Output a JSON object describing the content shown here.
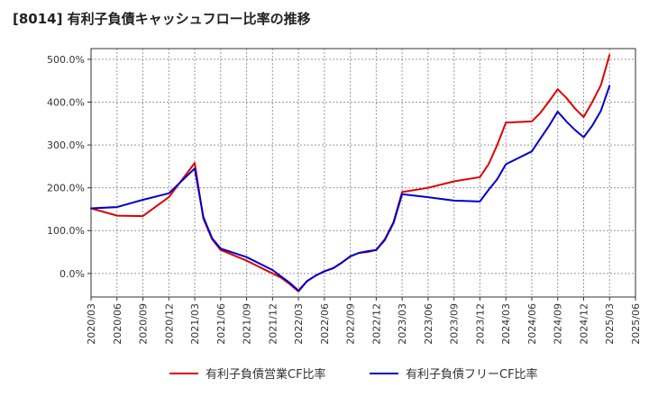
{
  "chart_data": {
    "type": "line",
    "title": "[8014]  有利子負債キャッシュフロー比率の推移",
    "xlabel": "",
    "ylabel": "",
    "ylim": [
      -55,
      525
    ],
    "y_ticks": [
      0,
      100,
      200,
      300,
      400,
      500
    ],
    "y_tick_labels": [
      "0.0%",
      "100.0%",
      "200.0%",
      "300.0%",
      "400.0%",
      "500.0%"
    ],
    "x_range": [
      2020.25,
      2025.5
    ],
    "x_ticks": [
      2020.25,
      2020.5,
      2020.75,
      2021.0,
      2021.25,
      2021.5,
      2021.75,
      2022.0,
      2022.25,
      2022.5,
      2022.75,
      2023.0,
      2023.25,
      2023.5,
      2023.75,
      2024.0,
      2024.25,
      2024.5,
      2024.75,
      2025.0,
      2025.25,
      2025.5
    ],
    "x_tick_labels": [
      "2020/03",
      "2020/06",
      "2020/09",
      "2020/12",
      "2021/03",
      "2021/06",
      "2021/09",
      "2021/12",
      "2022/03",
      "2022/06",
      "2022/09",
      "2022/12",
      "2023/03",
      "2023/06",
      "2023/09",
      "2023/12",
      "2024/03",
      "2024/06",
      "2024/09",
      "2024/12",
      "2025/03",
      "2025/06"
    ],
    "grid": true,
    "legend_position": "bottom",
    "series": [
      {
        "name": "有利子負債営業CF比率",
        "color": "#dd0000",
        "x": [
          2020.25,
          2020.5,
          2020.75,
          2021.0,
          2021.25,
          2021.333,
          2021.417,
          2021.5,
          2021.75,
          2022.0,
          2022.083,
          2022.167,
          2022.25,
          2022.333,
          2022.417,
          2022.5,
          2022.583,
          2022.667,
          2022.75,
          2022.833,
          2022.917,
          2023.0,
          2023.083,
          2023.167,
          2023.25,
          2023.5,
          2023.75,
          2024.0,
          2024.083,
          2024.167,
          2024.25,
          2024.5,
          2024.583,
          2024.667,
          2024.75,
          2024.833,
          2024.917,
          2025.0,
          2025.083,
          2025.167,
          2025.25
        ],
        "values": [
          152,
          135,
          134,
          178,
          258,
          128,
          80,
          55,
          30,
          0,
          -10,
          -25,
          -42,
          -18,
          -5,
          5,
          12,
          25,
          40,
          48,
          50,
          55,
          80,
          120,
          190,
          200,
          215,
          225,
          255,
          300,
          352,
          355,
          375,
          402,
          430,
          410,
          385,
          365,
          400,
          440,
          510
        ]
      },
      {
        "name": "有利子負債フリーCF比率",
        "color": "#0000cc",
        "x": [
          2020.25,
          2020.5,
          2020.75,
          2021.0,
          2021.25,
          2021.333,
          2021.417,
          2021.5,
          2021.75,
          2022.0,
          2022.083,
          2022.167,
          2022.25,
          2022.333,
          2022.417,
          2022.5,
          2022.583,
          2022.667,
          2022.75,
          2022.833,
          2022.917,
          2023.0,
          2023.083,
          2023.167,
          2023.25,
          2023.5,
          2023.75,
          2024.0,
          2024.083,
          2024.167,
          2024.25,
          2024.5,
          2024.583,
          2024.667,
          2024.75,
          2024.833,
          2024.917,
          2025.0,
          2025.083,
          2025.167,
          2025.25
        ],
        "values": [
          152,
          155,
          172,
          187,
          245,
          132,
          82,
          58,
          38,
          8,
          -7,
          -22,
          -40,
          -18,
          -5,
          5,
          12,
          25,
          40,
          48,
          52,
          55,
          78,
          118,
          185,
          178,
          170,
          168,
          195,
          220,
          255,
          285,
          315,
          345,
          378,
          355,
          335,
          318,
          345,
          380,
          438
        ]
      }
    ]
  }
}
